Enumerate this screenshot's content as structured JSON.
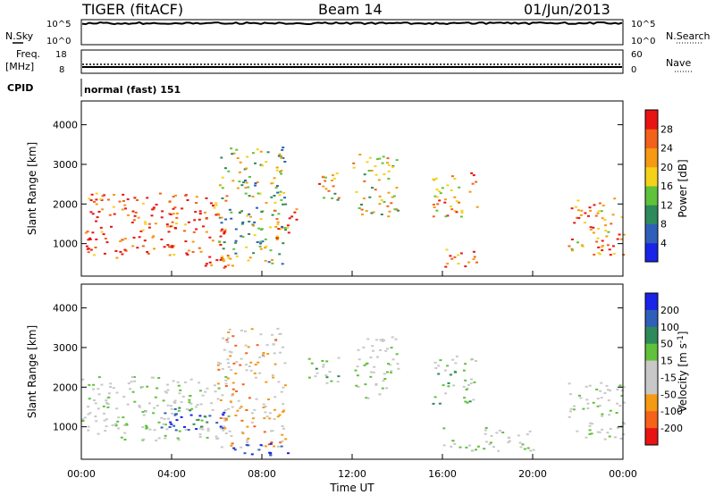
{
  "header": {
    "site": "TIGER (fitACF)",
    "beam": "Beam 14",
    "date": "01/Jun/2013"
  },
  "status_panels": {
    "nsky": {
      "label": "N.Sky",
      "ticks": [
        "10^5",
        "10^0"
      ]
    },
    "nsearch": {
      "label": "N.Search",
      "ticks": [
        "10^5",
        "10^0"
      ]
    },
    "freq": {
      "label_line1": "Freq.",
      "label_line2": "[MHz]",
      "ticks": [
        "18",
        "8"
      ]
    },
    "nave": {
      "label": "Nave",
      "ticks": [
        "60",
        "0"
      ]
    },
    "cpid": {
      "label": "CPID",
      "value": "normal (fast) 151"
    }
  },
  "colors": {
    "power": [
      "#1a24e6",
      "#2f5fb8",
      "#2e8a5a",
      "#5fc23a",
      "#f5d21a",
      "#f59a12",
      "#f2621a",
      "#e81414"
    ],
    "velocity": [
      "#e81414",
      "#f5621a",
      "#f59a12",
      "#c8c8c8",
      "#c8c8c8",
      "#5fc23a",
      "#2e8a5a",
      "#2f5fb8",
      "#1a24e6"
    ]
  },
  "chart_data": [
    {
      "type": "heatmap",
      "title": "",
      "xlabel": "Time UT",
      "ylabel": "Slant Range [km]",
      "x_ticks": [
        "00:00",
        "04:00",
        "08:00",
        "12:00",
        "16:00",
        "20:00",
        "00:00"
      ],
      "xlim_hours": [
        0,
        24
      ],
      "ylim": [
        180,
        4600
      ],
      "y_ticks": [
        1000,
        2000,
        3000,
        4000
      ],
      "colorbar": {
        "label": "Power [dB]",
        "ticks": [
          "4",
          "8",
          "12",
          "16",
          "20",
          "24",
          "28"
        ],
        "range": [
          0,
          32
        ]
      },
      "echo_regions": [
        {
          "t0": 0.0,
          "t1": 6.5,
          "r0": 650,
          "r1": 2300,
          "level": 0.85
        },
        {
          "t0": 5.0,
          "t1": 6.5,
          "r0": 350,
          "r1": 700,
          "level": 1.0
        },
        {
          "t0": 6.0,
          "t1": 9.0,
          "r0": 400,
          "r1": 3500,
          "level": 0.45
        },
        {
          "t0": 8.5,
          "t1": 9.5,
          "r0": 1000,
          "r1": 1900,
          "level": 0.8
        },
        {
          "t0": 10.0,
          "t1": 11.5,
          "r0": 2100,
          "r1": 2800,
          "level": 0.6
        },
        {
          "t0": 12.0,
          "t1": 14.0,
          "r0": 1700,
          "r1": 3300,
          "level": 0.55
        },
        {
          "t0": 15.5,
          "t1": 17.5,
          "r0": 1600,
          "r1": 2800,
          "level": 0.65
        },
        {
          "t0": 16.0,
          "t1": 17.5,
          "r0": 400,
          "r1": 1000,
          "level": 0.85
        },
        {
          "t0": 21.5,
          "t1": 24.0,
          "r0": 700,
          "r1": 2200,
          "level": 0.75
        }
      ]
    },
    {
      "type": "heatmap",
      "title": "",
      "xlabel": "Time UT",
      "ylabel": "Slant Range [km]",
      "x_ticks": [
        "00:00",
        "04:00",
        "08:00",
        "12:00",
        "16:00",
        "20:00",
        "00:00"
      ],
      "xlim_hours": [
        0,
        24
      ],
      "ylim": [
        180,
        4600
      ],
      "y_ticks": [
        1000,
        2000,
        3000,
        4000
      ],
      "colorbar": {
        "label": "Velocity [m s^-1]",
        "ticks": [
          "200",
          "100",
          "50",
          "15",
          "-15",
          "-50",
          "-100",
          "-200"
        ],
        "range": [
          -250,
          250
        ]
      },
      "echo_regions": [
        {
          "t0": 0.0,
          "t1": 6.5,
          "r0": 650,
          "r1": 2300,
          "vel": 0
        },
        {
          "t0": 3.5,
          "t1": 6.5,
          "r0": 900,
          "r1": 1500,
          "vel": 200
        },
        {
          "t0": 6.0,
          "t1": 9.0,
          "r0": 500,
          "r1": 3500,
          "vel": -80
        },
        {
          "t0": 6.5,
          "t1": 9.5,
          "r0": 300,
          "r1": 600,
          "vel": 220
        },
        {
          "t0": 10.0,
          "t1": 11.5,
          "r0": 2100,
          "r1": 2800,
          "vel": 40
        },
        {
          "t0": 12.0,
          "t1": 14.0,
          "r0": 1700,
          "r1": 3300,
          "vel": 0
        },
        {
          "t0": 15.5,
          "t1": 17.5,
          "r0": 1600,
          "r1": 2800,
          "vel": 40
        },
        {
          "t0": 16.0,
          "t1": 20.0,
          "r0": 400,
          "r1": 1000,
          "vel": 0
        },
        {
          "t0": 21.5,
          "t1": 24.0,
          "r0": 700,
          "r1": 2200,
          "vel": 0
        }
      ]
    }
  ]
}
